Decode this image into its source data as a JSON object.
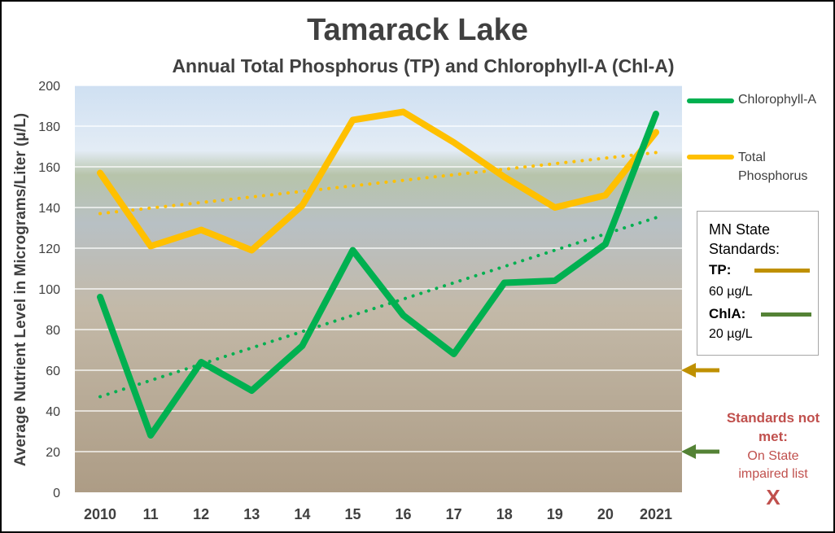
{
  "chart_data": {
    "type": "line",
    "title": "Tamarack Lake",
    "subtitle": "Annual Total Phosphorus (TP) and Chlorophyll-A (Chl-A)",
    "ylabel": "Average Nutrient Level in Micrograms/Liter (μ/L)",
    "xlabel": "",
    "categories": [
      "2010",
      "11",
      "12",
      "13",
      "14",
      "15",
      "16",
      "17",
      "18",
      "19",
      "20",
      "2021"
    ],
    "ylim": [
      0,
      200
    ],
    "yticks": [
      0,
      20,
      40,
      60,
      80,
      100,
      120,
      140,
      160,
      180,
      200
    ],
    "grid": true,
    "legend_position": "right",
    "series": [
      {
        "name": "Chlorophyll-A",
        "color": "#00b050",
        "values": [
          96,
          28,
          64,
          50,
          72,
          119,
          87,
          68,
          103,
          104,
          122,
          186
        ]
      },
      {
        "name": "Total Phosphorus",
        "color": "#ffc000",
        "values": [
          157,
          121,
          129,
          119,
          141,
          183,
          187,
          172,
          155,
          140,
          146,
          177
        ]
      }
    ],
    "trendlines": [
      {
        "series": "Total Phosphorus",
        "color": "#ffc000",
        "start": 137,
        "end": 167
      },
      {
        "series": "Chlorophyll-A",
        "color": "#00b050",
        "start": 47,
        "end": 135
      }
    ],
    "standard_markers": [
      {
        "label": "TP",
        "value": 60,
        "color": "#bf9000"
      },
      {
        "label": "ChlA",
        "value": 20,
        "color": "#548235"
      }
    ]
  },
  "standards_box": {
    "title": "MN State Standards:",
    "tp_label": "TP:",
    "tp_value": "60 µg/L",
    "tp_color": "#bf9000",
    "chla_label": "ChlA:",
    "chla_value": "20 µg/L",
    "chla_color": "#548235"
  },
  "status": {
    "line1": "Standards not met:",
    "line2": "On State impaired list",
    "mark": "X"
  }
}
